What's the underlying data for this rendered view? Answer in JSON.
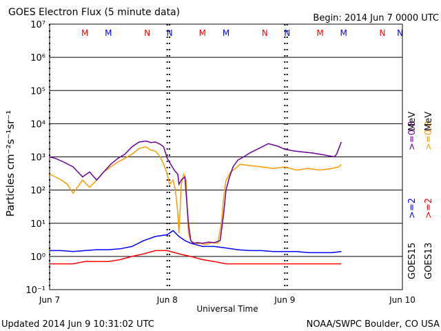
{
  "chart_data": {
    "type": "line",
    "title": "GOES Electron Flux (5 minute data)",
    "begin_label": "Begin: 2014 Jun 7 0000 UTC",
    "updated_label": "Updated 2014 Jun  9 10:31:02 UTC",
    "credit": "NOAA/SWPC Boulder, CO USA",
    "xlabel": "Universal Time",
    "ylabel": "Particles cm⁻²s⁻¹sr⁻¹",
    "y_scale": "log",
    "ylim": [
      0.1,
      10000000
    ],
    "xlim_days": [
      0,
      3
    ],
    "x_tick_labels": [
      "Jun 7",
      "Jun 8",
      "Jun 9",
      "Jun 10"
    ],
    "y_tick_labels": [
      "10⁻¹",
      "10⁰",
      "10¹",
      "10²",
      "10³",
      "10⁴",
      "10⁵",
      "10⁶",
      "10⁷"
    ],
    "threshold": 1000,
    "grid": true,
    "markers": [
      {
        "label": "M",
        "x": 0.3,
        "color": "#ff0000"
      },
      {
        "label": "M",
        "x": 0.5,
        "color": "#0000ff"
      },
      {
        "label": "N",
        "x": 0.83,
        "color": "#ff0000"
      },
      {
        "label": "N",
        "x": 1.02,
        "color": "#0000ff"
      },
      {
        "label": "M",
        "x": 1.3,
        "color": "#ff0000"
      },
      {
        "label": "M",
        "x": 1.5,
        "color": "#0000ff"
      },
      {
        "label": "N",
        "x": 1.83,
        "color": "#ff0000"
      },
      {
        "label": "N",
        "x": 2.02,
        "color": "#0000ff"
      },
      {
        "label": "M",
        "x": 2.3,
        "color": "#ff0000"
      },
      {
        "label": "M",
        "x": 2.5,
        "color": "#0000ff"
      },
      {
        "label": "N",
        "x": 2.83,
        "color": "#ff0000"
      },
      {
        "label": "N",
        "x": 2.98,
        "color": "#0000ff"
      }
    ],
    "dashed_times": [
      0.0,
      1.0,
      1.02,
      2.0,
      2.02
    ],
    "satellite_labels": [
      {
        "text": "GOES15",
        "color": "#000000"
      },
      {
        "text": "GOES13",
        "color": "#000000"
      }
    ],
    "legend": [
      {
        "text": ">=2",
        "color": "#0000ff"
      },
      {
        "text": ">=2",
        "color": "#ff0000"
      },
      {
        "text": ">=0.8",
        "color": "#660099"
      },
      {
        "text": ">=0.8",
        "color": "#ff9900"
      }
    ],
    "legend_unit": "MeV",
    "series": [
      {
        "name": "GOES15 >=0.8 MeV",
        "color": "#660099",
        "x": [
          0.0,
          0.05,
          0.12,
          0.2,
          0.28,
          0.34,
          0.4,
          0.46,
          0.52,
          0.58,
          0.64,
          0.7,
          0.76,
          0.82,
          0.86,
          0.9,
          0.94,
          0.97,
          1.0,
          1.03,
          1.06,
          1.09,
          1.1,
          1.12,
          1.15,
          1.18,
          1.2,
          1.22,
          1.26,
          1.3,
          1.35,
          1.4,
          1.45,
          1.48,
          1.5,
          1.53,
          1.56,
          1.6,
          1.65,
          1.7,
          1.78,
          1.86,
          1.94,
          2.0,
          2.08,
          2.16,
          2.24,
          2.3,
          2.36,
          2.42,
          2.44,
          2.46,
          2.48
        ],
        "y": [
          1000,
          900,
          700,
          500,
          250,
          350,
          200,
          350,
          600,
          900,
          1200,
          2000,
          2800,
          3000,
          2700,
          2800,
          2400,
          2000,
          900,
          600,
          400,
          300,
          150,
          200,
          250,
          10,
          3,
          2.5,
          2.6,
          2.5,
          2.7,
          2.6,
          3,
          20,
          100,
          250,
          500,
          800,
          1000,
          1300,
          1800,
          2500,
          2100,
          1700,
          1500,
          1400,
          1300,
          1200,
          1100,
          1000,
          1200,
          1800,
          2800
        ]
      },
      {
        "name": "GOES13 >=0.8 MeV",
        "color": "#ff9900",
        "x": [
          0.0,
          0.05,
          0.1,
          0.15,
          0.2,
          0.28,
          0.34,
          0.4,
          0.46,
          0.52,
          0.58,
          0.64,
          0.7,
          0.76,
          0.82,
          0.86,
          0.9,
          0.94,
          0.97,
          1.0,
          1.02,
          1.05,
          1.07,
          1.09,
          1.1,
          1.12,
          1.14,
          1.16,
          1.18,
          1.2,
          1.24,
          1.28,
          1.32,
          1.38,
          1.43,
          1.46,
          1.48,
          1.5,
          1.54,
          1.58,
          1.62,
          1.7,
          1.8,
          1.9,
          2.0,
          2.1,
          2.2,
          2.3,
          2.4,
          2.46,
          2.48
        ],
        "y": [
          300,
          250,
          200,
          150,
          80,
          200,
          120,
          200,
          350,
          500,
          700,
          900,
          1200,
          1800,
          2000,
          1600,
          1500,
          1000,
          600,
          300,
          150,
          200,
          100,
          20,
          5,
          150,
          300,
          200,
          5,
          3,
          2.4,
          2.5,
          2.3,
          2.6,
          2.5,
          10,
          60,
          200,
          350,
          450,
          600,
          550,
          500,
          450,
          500,
          400,
          450,
          400,
          450,
          500,
          600
        ]
      },
      {
        "name": "GOES15 >=2 MeV",
        "color": "#0000ff",
        "x": [
          0.0,
          0.1,
          0.2,
          0.3,
          0.4,
          0.5,
          0.6,
          0.7,
          0.8,
          0.9,
          1.0,
          1.05,
          1.1,
          1.15,
          1.2,
          1.3,
          1.4,
          1.5,
          1.6,
          1.7,
          1.8,
          1.9,
          2.0,
          2.1,
          2.2,
          2.3,
          2.4,
          2.48
        ],
        "y": [
          1.5,
          1.5,
          1.4,
          1.5,
          1.6,
          1.6,
          1.7,
          2,
          3,
          4,
          4.5,
          6,
          4,
          3,
          2.5,
          2,
          2,
          1.8,
          1.6,
          1.5,
          1.5,
          1.4,
          1.4,
          1.4,
          1.3,
          1.3,
          1.3,
          1.4
        ]
      },
      {
        "name": "GOES13 >=2 MeV",
        "color": "#ff0000",
        "x": [
          0.0,
          0.1,
          0.2,
          0.3,
          0.4,
          0.5,
          0.6,
          0.7,
          0.8,
          0.9,
          1.0,
          1.1,
          1.2,
          1.3,
          1.4,
          1.5,
          1.6,
          1.7,
          1.8,
          1.9,
          2.0,
          2.1,
          2.2,
          2.3,
          2.4,
          2.48
        ],
        "y": [
          0.6,
          0.6,
          0.6,
          0.7,
          0.7,
          0.7,
          0.8,
          1.0,
          1.2,
          1.5,
          1.5,
          1.2,
          1.0,
          0.8,
          0.7,
          0.6,
          0.6,
          0.6,
          0.6,
          0.6,
          0.6,
          0.6,
          0.6,
          0.6,
          0.6,
          0.6
        ]
      }
    ]
  }
}
